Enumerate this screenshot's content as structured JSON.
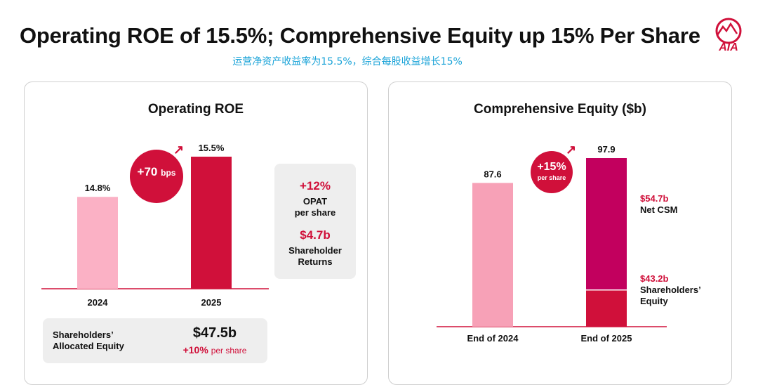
{
  "header": {
    "title": "Operating ROE of 15.5%; Comprehensive Equity up 15% Per Share",
    "subtitle": "运营净资产收益率为15.5%，综合每股收益增长15%",
    "logo_text": "AIA",
    "logo_icon": "aia-logo-icon"
  },
  "colors": {
    "brand_red": "#d0103a",
    "light_pink": "#f7a1b7",
    "pale_pink": "#fbb1c5",
    "magenta": "#c2005e",
    "card_grey": "#eeeeee"
  },
  "left_panel": {
    "title": "Operating ROE",
    "change_bubble": {
      "value": "+70",
      "unit": "bps"
    },
    "side_card": {
      "opat_value": "+12%",
      "opat_label_line1": "OPAT",
      "opat_label_line2": "per share",
      "returns_value": "$4.7b",
      "returns_label_line1": "Shareholder",
      "returns_label_line2": "Returns"
    },
    "equity_card": {
      "label_line1": "Shareholders’",
      "label_line2": "Allocated Equity",
      "value": "$47.5b",
      "growth": "+10%",
      "growth_suffix": "per share"
    }
  },
  "right_panel": {
    "title": "Comprehensive Equity ($b)",
    "change_bubble": {
      "value": "+15%",
      "unit": "per share"
    },
    "segment_labels": {
      "net_csm_value": "$54.7b",
      "net_csm_label": "Net CSM",
      "equity_value": "$43.2b",
      "equity_label_line1": "Shareholders’",
      "equity_label_line2": "Equity"
    }
  },
  "chart_data": [
    {
      "type": "bar",
      "title": "Operating ROE",
      "categories": [
        "2024",
        "2025"
      ],
      "values": [
        14.8,
        15.5
      ],
      "data_labels": [
        "14.8%",
        "15.5%"
      ],
      "unit": "%",
      "colors": [
        "#fbb1c5",
        "#d0103a"
      ],
      "xlabel": "",
      "ylabel": "",
      "grid": false
    },
    {
      "type": "bar",
      "stacked": true,
      "title": "Comprehensive Equity ($b)",
      "categories": [
        "End of 2024",
        "End of 2025"
      ],
      "totals": [
        87.6,
        97.9
      ],
      "data_labels": [
        "87.6",
        "97.9"
      ],
      "series": [
        {
          "values": [
            87.6,
            43.2
          ],
          "colors": [
            "#f7a1b7",
            "#d0103a"
          ]
        },
        {
          "values": [
            0,
            54.7
          ],
          "colors": [
            "#c2005e",
            "#c2005e"
          ]
        }
      ],
      "unit": "$b",
      "xlabel": "",
      "ylabel": "",
      "grid": false
    }
  ]
}
